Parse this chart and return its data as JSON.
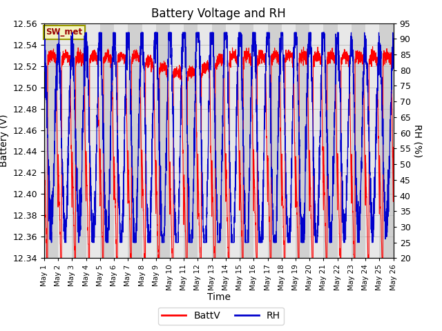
{
  "title": "Battery Voltage and RH",
  "xlabel": "Time",
  "ylabel_left": "Battery (V)",
  "ylabel_right": "RH (%)",
  "annotation": "SW_met",
  "ylim_left": [
    12.34,
    12.56
  ],
  "ylim_right": [
    20,
    95
  ],
  "yticks_left": [
    12.34,
    12.36,
    12.38,
    12.4,
    12.42,
    12.44,
    12.46,
    12.48,
    12.5,
    12.52,
    12.54,
    12.56
  ],
  "yticks_right": [
    20,
    25,
    30,
    35,
    40,
    45,
    50,
    55,
    60,
    65,
    70,
    75,
    80,
    85,
    90,
    95
  ],
  "battv_color": "#ff0000",
  "rh_color": "#0000cc",
  "plot_bg_light": "#e8e8e8",
  "plot_bg_dark": "#d0d0d0",
  "grid_color": "#c0c0c0",
  "legend_battv": "BattV",
  "legend_rh": "RH",
  "title_fontsize": 12,
  "axis_fontsize": 10,
  "tick_fontsize": 9,
  "n_days": 25,
  "seed": 7
}
